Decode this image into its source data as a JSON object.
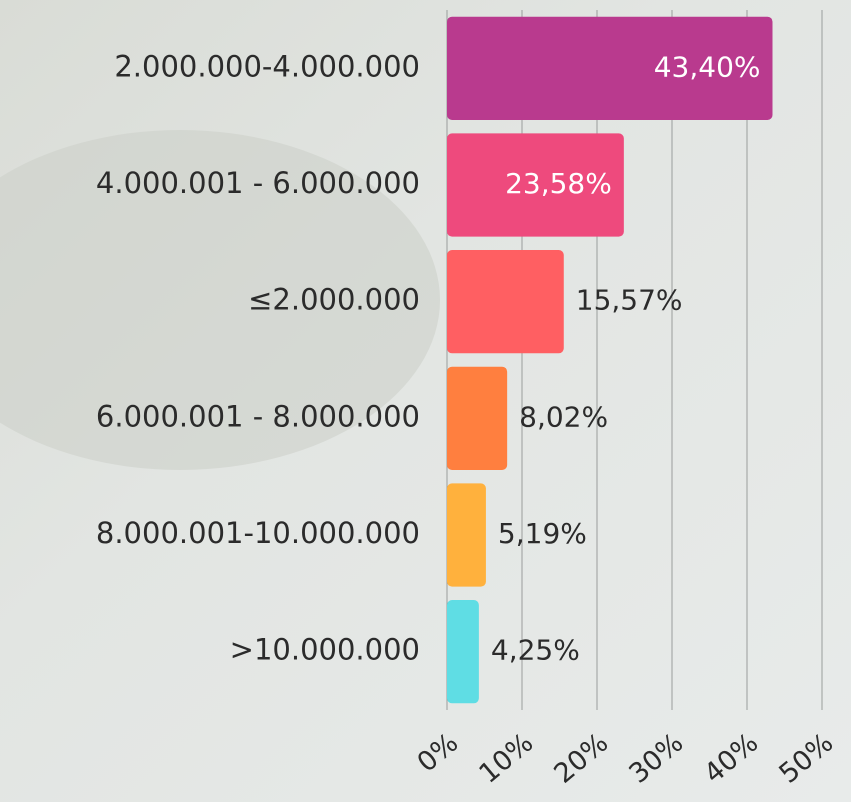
{
  "chart_data": {
    "type": "bar",
    "orientation": "horizontal",
    "categories": [
      "2.000.000-4.000.000",
      "4.000.001 - 6.000.000",
      "≤2.000.000",
      "6.000.001 - 8.000.000",
      "8.000.001-10.000.000",
      ">10.000.000"
    ],
    "values": [
      43.4,
      23.58,
      15.57,
      8.02,
      5.19,
      4.25
    ],
    "value_labels": [
      "43,40%",
      "23,58%",
      "15,57%",
      "8,02%",
      "5,19%",
      "4,25%"
    ],
    "colors": [
      "#b93a8e",
      "#ee4a7d",
      "#ff5f62",
      "#ff7f3f",
      "#ffb13d",
      "#5fdde4"
    ],
    "xlim": [
      0,
      50
    ],
    "xticks": [
      {
        "value": 0,
        "label": "0%"
      },
      {
        "value": 10,
        "label": "10%"
      },
      {
        "value": 20,
        "label": "20%"
      },
      {
        "value": 30,
        "label": "30%"
      },
      {
        "value": 40,
        "label": "40%"
      },
      {
        "value": 50,
        "label": "50%"
      }
    ],
    "grid": true
  }
}
